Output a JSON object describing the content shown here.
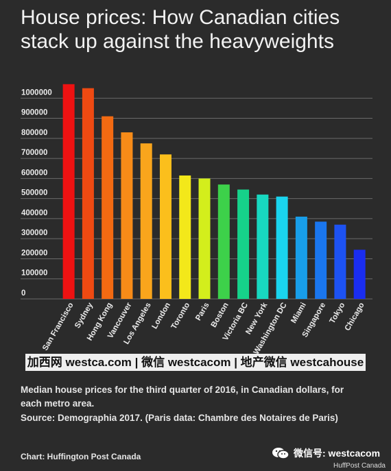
{
  "chart_data": {
    "type": "bar",
    "title": "House prices: How Canadian cities stack up against the heavyweights",
    "categories": [
      "San Francisco",
      "Sydney",
      "Hong Kong",
      "Vancouver",
      "Los Angeles",
      "London",
      "Toronto",
      "Paris",
      "Boston",
      "Victoria BC",
      "New York",
      "Washington DC",
      "Miami",
      "Singapore",
      "Tokyo",
      "Chicago"
    ],
    "values": [
      1070000,
      1050000,
      910000,
      830000,
      775000,
      720000,
      615000,
      600000,
      570000,
      545000,
      520000,
      510000,
      410000,
      385000,
      370000,
      245000
    ],
    "colors": [
      "#ee1212",
      "#ef4a12",
      "#f36a12",
      "#f78b18",
      "#f9a51c",
      "#fbbf1c",
      "#f3e81a",
      "#d3ee1c",
      "#3dd14a",
      "#16d28a",
      "#18d8c0",
      "#1ad4ee",
      "#189ee9",
      "#1a76ee",
      "#1d52f2",
      "#1a2df0"
    ],
    "yticks": [
      "1000000",
      "900000",
      "800000",
      "700000",
      "600000",
      "500000",
      "400000",
      "300000",
      "200000",
      "100000",
      "0"
    ],
    "ylim": [
      0,
      1100000
    ],
    "grid": true,
    "xlabel": "",
    "ylabel": ""
  },
  "watermark": "加西网 westca.com | 微信 westcacom | 地产微信 westcahouse",
  "caption_line1": "Median house prices for the third quarter of 2016, in Canadian dollars, for each metro area.",
  "caption_line2": "Source: Demographia 2017. (Paris data: Chambre des Notaires de Paris)",
  "credit": "Chart: Huffington Post Canada",
  "wechat_id": "微信号: westcacom",
  "corner_brand": "HuffPost Canada",
  "icon": "wechat-icon"
}
